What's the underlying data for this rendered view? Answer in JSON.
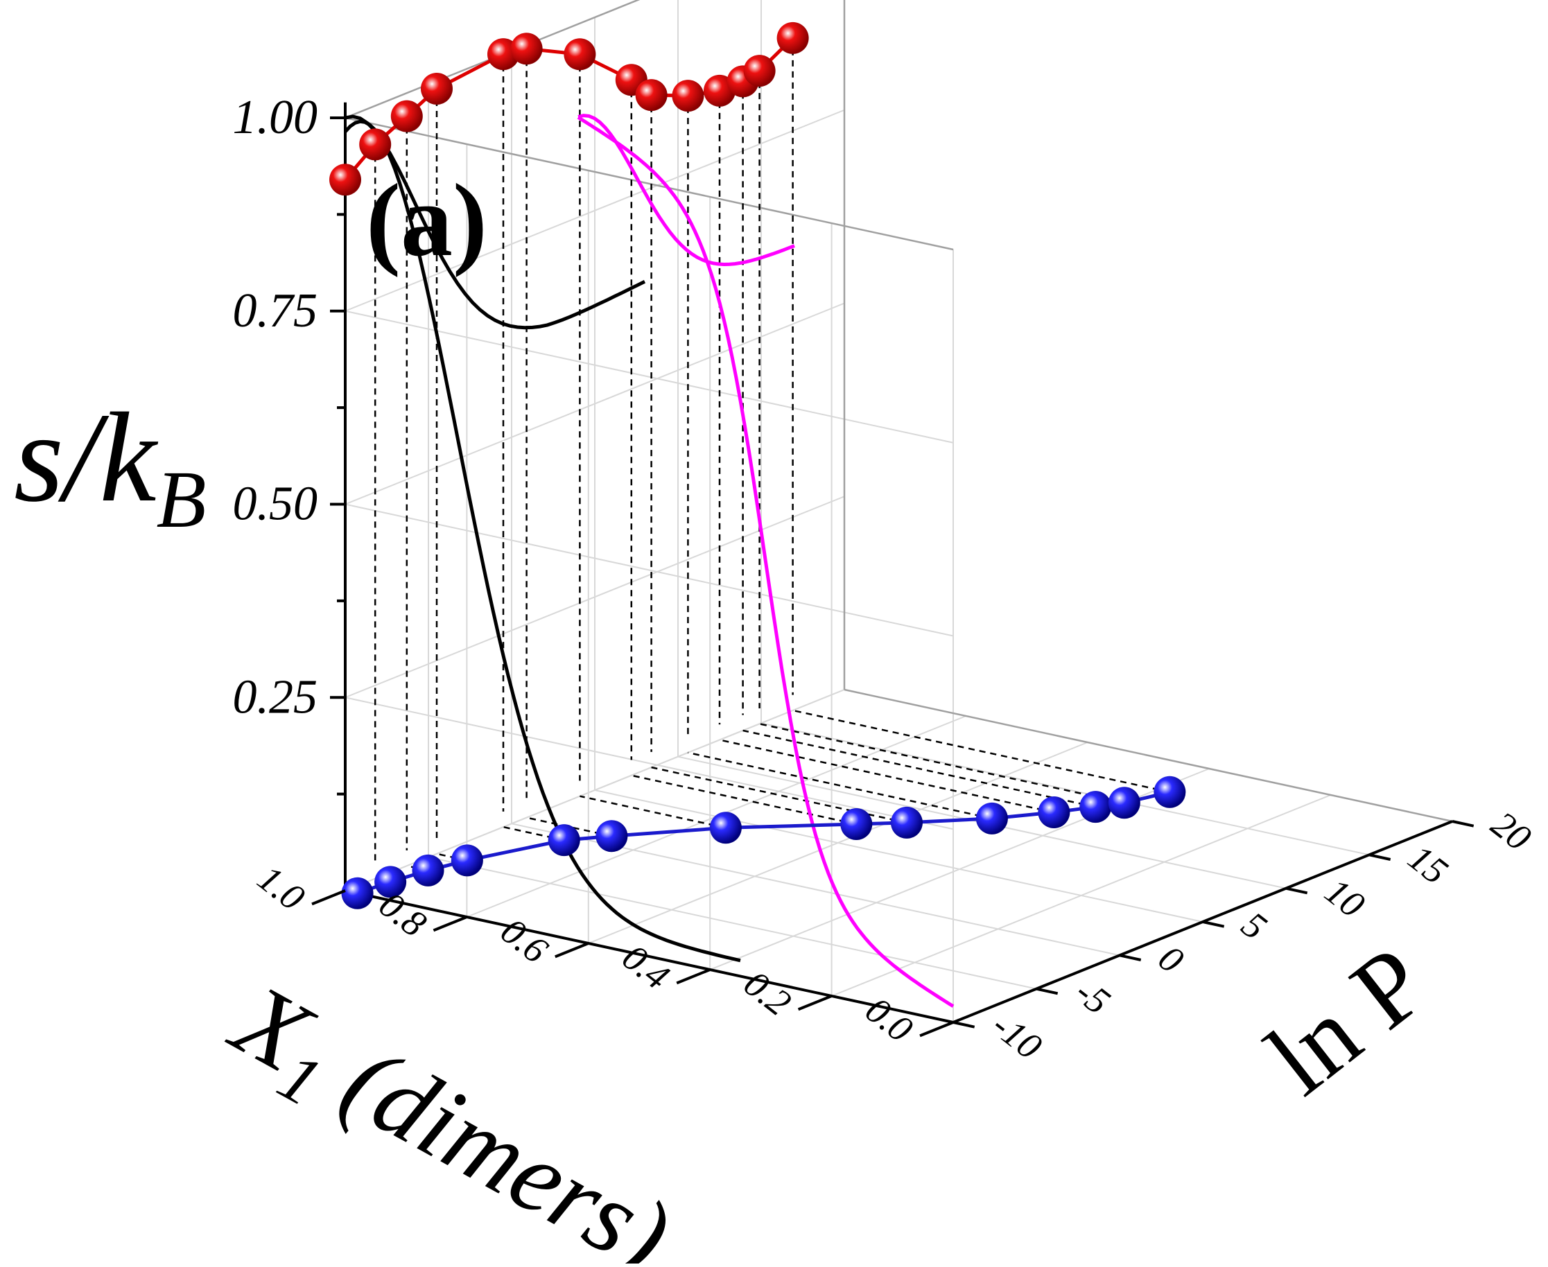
{
  "chart_data": {
    "type": "line-3d",
    "panel_label": "(a)",
    "zlabel": {
      "main": "s/k",
      "sub": "B"
    },
    "xlabel": {
      "main": "X",
      "sub": "1",
      "rest": " (dimers)"
    },
    "ylabel": "ln P",
    "x_axis": {
      "range": [
        0.0,
        1.0
      ],
      "ticks": [
        "0.0",
        "0.2",
        "0.4",
        "0.6",
        "0.8",
        "1.0"
      ]
    },
    "y_axis": {
      "range": [
        -10,
        20
      ],
      "ticks": [
        "-10",
        "-5",
        "0",
        "5",
        "10",
        "15",
        "20"
      ]
    },
    "z_axis": {
      "range": [
        0.0,
        1.0
      ],
      "ticks": [
        "0.25",
        "0.50",
        "0.75",
        "1.00"
      ]
    },
    "grid": true,
    "series": [
      {
        "name": "entropy-projection-back-wall",
        "color": "#dd0000",
        "marker": "sphere",
        "points": [
          {
            "lnP": -10.0,
            "s": 0.92
          },
          {
            "lnP": -8.2,
            "s": 0.95
          },
          {
            "lnP": -6.3,
            "s": 0.97
          },
          {
            "lnP": -4.5,
            "s": 0.99
          },
          {
            "lnP": -0.5,
            "s": 1.0
          },
          {
            "lnP": 0.9,
            "s": 0.995
          },
          {
            "lnP": 4.1,
            "s": 0.96
          },
          {
            "lnP": 7.2,
            "s": 0.9
          },
          {
            "lnP": 8.4,
            "s": 0.87
          },
          {
            "lnP": 10.6,
            "s": 0.85
          },
          {
            "lnP": 12.5,
            "s": 0.84
          },
          {
            "lnP": 13.9,
            "s": 0.84
          },
          {
            "lnP": 14.9,
            "s": 0.845
          },
          {
            "lnP": 16.9,
            "s": 0.87
          }
        ]
      },
      {
        "name": "mole-fraction-projection-floor",
        "color": "#1a1acc",
        "marker": "sphere",
        "points": [
          {
            "lnP": -10.0,
            "x1": 0.98
          },
          {
            "lnP": -8.2,
            "x1": 0.975
          },
          {
            "lnP": -6.3,
            "x1": 0.965
          },
          {
            "lnP": -4.5,
            "x1": 0.95
          },
          {
            "lnP": -0.5,
            "x1": 0.9
          },
          {
            "lnP": 0.9,
            "x1": 0.86
          },
          {
            "lnP": 4.1,
            "x1": 0.76
          },
          {
            "lnP": 7.2,
            "x1": 0.63
          },
          {
            "lnP": 8.4,
            "x1": 0.58
          },
          {
            "lnP": 10.6,
            "x1": 0.5
          },
          {
            "lnP": 12.5,
            "x1": 0.45
          },
          {
            "lnP": 13.9,
            "x1": 0.42
          },
          {
            "lnP": 14.9,
            "x1": 0.4
          },
          {
            "lnP": 16.9,
            "x1": 0.38
          }
        ]
      },
      {
        "name": "black-curve-left-wall",
        "color": "#000000"
      },
      {
        "name": "magenta-curve",
        "color": "#ff00ff"
      }
    ]
  }
}
